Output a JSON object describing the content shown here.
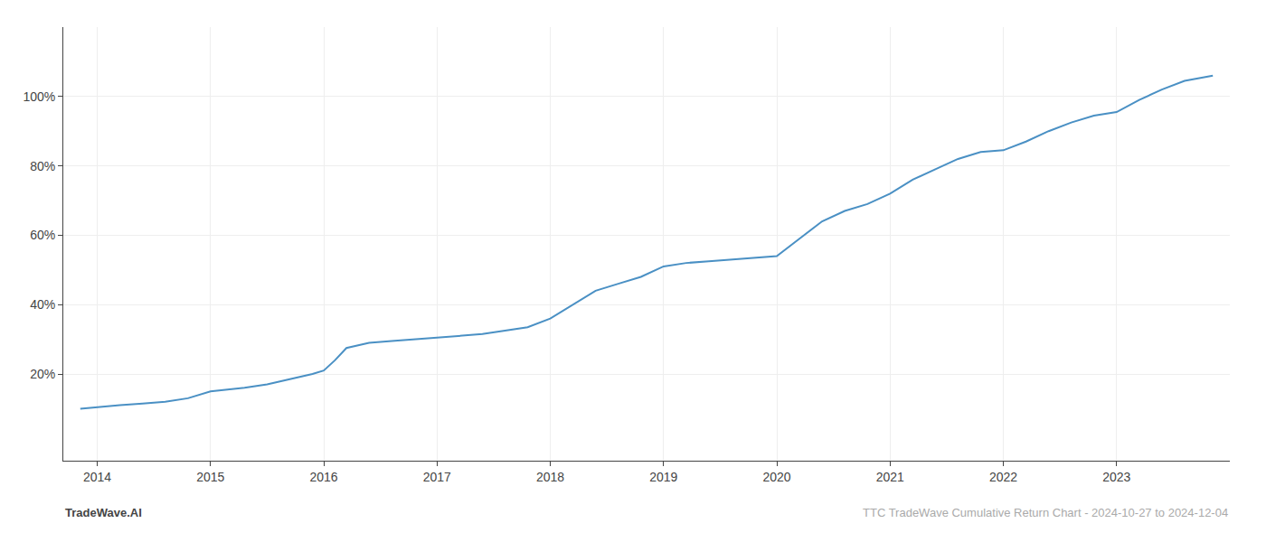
{
  "chart_data": {
    "type": "line",
    "x": [
      2013.85,
      2014.0,
      2014.2,
      2014.4,
      2014.6,
      2014.8,
      2015.0,
      2015.15,
      2015.3,
      2015.5,
      2015.7,
      2015.9,
      2016.0,
      2016.1,
      2016.2,
      2016.4,
      2016.6,
      2016.8,
      2017.0,
      2017.2,
      2017.4,
      2017.6,
      2017.8,
      2018.0,
      2018.2,
      2018.4,
      2018.6,
      2018.8,
      2019.0,
      2019.2,
      2019.4,
      2019.6,
      2019.8,
      2020.0,
      2020.2,
      2020.4,
      2020.6,
      2020.8,
      2021.0,
      2021.2,
      2021.4,
      2021.6,
      2021.8,
      2022.0,
      2022.2,
      2022.4,
      2022.6,
      2022.8,
      2023.0,
      2023.2,
      2023.4,
      2023.6,
      2023.85
    ],
    "values": [
      10,
      10.5,
      11,
      11.5,
      12,
      13,
      15,
      15.5,
      16,
      17,
      18.5,
      20,
      21,
      24,
      27.5,
      29,
      29.5,
      30,
      30.5,
      31,
      31.5,
      32.5,
      33.5,
      36,
      40,
      44,
      46,
      48,
      51,
      52,
      52.5,
      53,
      53.5,
      54,
      59,
      64,
      67,
      69,
      72,
      76,
      79,
      82,
      84,
      84.5,
      87,
      90,
      92.5,
      94.5,
      95.5,
      99,
      102,
      104.5,
      106
    ],
    "color": "#4a90c4",
    "xlim": [
      2013.7,
      2024.0
    ],
    "xticks": [
      2014,
      2015,
      2016,
      2017,
      2018,
      2019,
      2020,
      2021,
      2022,
      2023
    ],
    "ylim": [
      -5,
      120
    ],
    "yticks": [
      {
        "value": 20,
        "label": "20%"
      },
      {
        "value": 40,
        "label": "40%"
      },
      {
        "value": 60,
        "label": "60%"
      },
      {
        "value": 80,
        "label": "80%"
      },
      {
        "value": 100,
        "label": "100%"
      }
    ],
    "grid": true,
    "annotations": [
      {
        "text": "TradeWave.AI",
        "color": "#444444"
      },
      {
        "text": "TTC TradeWave Cumulative Return Chart - 2024-10-27 to 2024-12-04",
        "color": "#aaaaaa"
      }
    ]
  }
}
